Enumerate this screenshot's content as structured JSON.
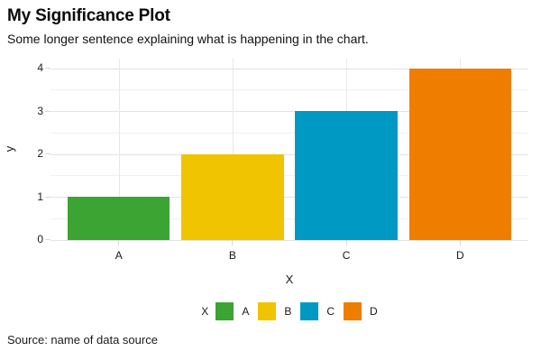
{
  "header": {
    "title": "My Significance Plot",
    "subtitle": "Some longer sentence explaining what is happening in the chart."
  },
  "chart_data": {
    "type": "bar",
    "title": "My Significance Plot",
    "subtitle": "Some longer sentence explaining what is happening in the chart.",
    "categories": [
      "A",
      "B",
      "C",
      "D"
    ],
    "values": [
      1,
      2,
      3,
      4
    ],
    "bar_colors": [
      "#3CA432",
      "#F0C400",
      "#0099C4",
      "#EE7D00"
    ],
    "xlabel": "X",
    "ylabel": "y",
    "ylim": [
      0,
      4.2
    ],
    "yticks": [
      0,
      1,
      2,
      3,
      4
    ],
    "yticks_minor": [
      0.5,
      1.5,
      2.5,
      3.5
    ],
    "bar_width_fraction": 0.9,
    "grid": "horizontal major and minor lines; vertical lines at category centers",
    "legend": {
      "position": "bottom",
      "title": "X",
      "items": [
        {
          "label": "A",
          "color": "#3CA432"
        },
        {
          "label": "B",
          "color": "#F0C400"
        },
        {
          "label": "C",
          "color": "#0099C4"
        },
        {
          "label": "D",
          "color": "#EE7D00"
        }
      ]
    }
  },
  "footer": {
    "source": "Source: name of data source"
  },
  "style": {
    "background": "#FFFFFF",
    "grid_major": "#E3E3E3",
    "grid_minor": "#F1F1F1",
    "grid_vertical": "#E8E8E8",
    "tick_color": "#D8D8D8",
    "text_color": "#1A1A1A"
  }
}
